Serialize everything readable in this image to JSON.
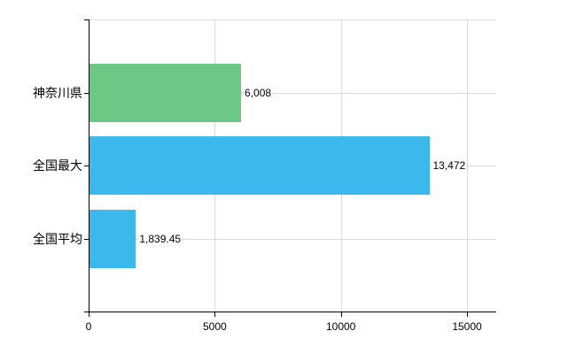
{
  "chart_data": {
    "type": "bar",
    "orientation": "horizontal",
    "title": "",
    "xlabel": "",
    "ylabel": "",
    "categories": [
      "神奈川県",
      "全国最大",
      "全国平均"
    ],
    "values": [
      6008,
      13472,
      1839.45
    ],
    "value_labels": [
      "6,008",
      "13,472",
      "1,839.45"
    ],
    "bar_colors": [
      "#6cc884",
      "#3db8ec",
      "#3db8ec"
    ],
    "xlim": [
      0,
      15000
    ],
    "x_ticks": [
      0,
      5000,
      10000,
      15000
    ],
    "x_tick_labels": [
      "0",
      "5000",
      "10000",
      "15000"
    ],
    "grid": true,
    "legend": false
  },
  "colors": {
    "background": "#ffffff",
    "axis": "#000000",
    "grid": "#d9d9d9",
    "text": "#000000",
    "green_bar": "#6cc884",
    "blue_bar": "#3db8ec"
  }
}
